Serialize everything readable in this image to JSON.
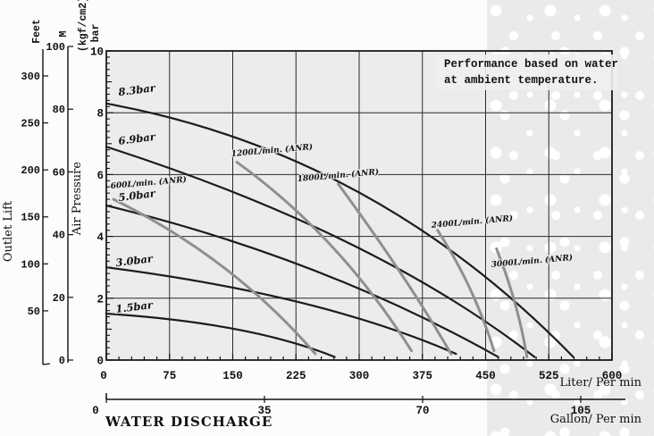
{
  "chart_data": {
    "type": "line",
    "note": {
      "lines": [
        "Performance based on water",
        "at ambient temperature."
      ]
    },
    "x_axis": {
      "label": "Liter/ Per min",
      "min": 0,
      "max": 600,
      "ticks": [
        0,
        75,
        150,
        225,
        300,
        375,
        450,
        525,
        600
      ],
      "minor_step": 15
    },
    "y_axis": {
      "label": "Air Pressure",
      "unit_labels": [
        "(kgf/cm2)",
        "bar"
      ],
      "min": 0,
      "max": 10,
      "ticks": [
        10,
        8,
        6,
        4,
        2,
        0
      ],
      "grid_ticks": [
        2,
        4,
        6,
        8,
        10
      ],
      "minor_step": 0.2
    },
    "secondary_x_axis": {
      "title": "WATER DISCHARGE",
      "label": "Gallon/ Per min",
      "ticks": [
        0,
        35,
        70,
        105
      ]
    },
    "left_scales": [
      {
        "label": "Feet",
        "ticks": [
          300,
          250,
          200,
          150,
          100,
          50
        ]
      },
      {
        "label": "M",
        "ticks": [
          100,
          80,
          60,
          40,
          20,
          0
        ]
      }
    ],
    "outer_y_label": "Outlet Lift",
    "colors": {
      "pressure_curve": "#1c1c1c",
      "air_curve": "#8f8f8f",
      "grid": "#2a2a2a",
      "plot_bg": "#ececec"
    },
    "pressure_curves": [
      {
        "label": "8.3bar",
        "from": [
          0,
          8.3
        ],
        "ctrl": [
          319,
          6.7
        ],
        "to": [
          554,
          0.1
        ],
        "label_at": [
          14.8,
          8.55
        ]
      },
      {
        "label": "6.9bar",
        "from": [
          0,
          6.9
        ],
        "ctrl": [
          319,
          4.1
        ],
        "to": [
          508,
          0.1
        ],
        "label_at": [
          14.8,
          6.97
        ]
      },
      {
        "label": "5.0bar",
        "from": [
          0,
          5.0
        ],
        "ctrl": [
          256,
          3.3
        ],
        "to": [
          465,
          0.1
        ],
        "label_at": [
          14.8,
          5.14
        ]
      },
      {
        "label": "3.0bar",
        "from": [
          0,
          3.0
        ],
        "ctrl": [
          256,
          2.1
        ],
        "to": [
          415,
          0.2
        ],
        "label_at": [
          11.7,
          3.03
        ]
      },
      {
        "label": "1.5bar",
        "from": [
          0,
          1.5
        ],
        "ctrl": [
          171,
          1.2
        ],
        "to": [
          271,
          0.1
        ],
        "label_at": [
          11.7,
          1.53
        ]
      }
    ],
    "air_curves": [
      {
        "label": "600L/min. (ANR)",
        "from": [
          8.5,
          5.2
        ],
        "ctrl": [
          150,
          3.3
        ],
        "to": [
          248,
          0.2
        ],
        "label_at": [
          5.3,
          5.55
        ]
      },
      {
        "label": "1200L/min. (ANR)",
        "from": [
          155,
          6.4
        ],
        "ctrl": [
          277,
          4.0
        ],
        "to": [
          362,
          0.3
        ],
        "label_at": [
          148.4,
          6.59
        ]
      },
      {
        "label": "1800L/min. (ANR)",
        "from": [
          275,
          5.7
        ],
        "ctrl": [
          356,
          2.7
        ],
        "to": [
          409,
          0.2
        ],
        "label_at": [
          226.9,
          5.78
        ]
      },
      {
        "label": "2400L/min. (ANR)",
        "from": [
          393,
          4.2
        ],
        "ctrl": [
          436,
          2.4
        ],
        "to": [
          460,
          0.3
        ],
        "label_at": [
          385.9,
          4.28
        ]
      },
      {
        "label": "3000L/min. (ANR)",
        "from": [
          463,
          3.6
        ],
        "ctrl": [
          489,
          1.8
        ],
        "to": [
          499,
          0.1
        ],
        "label_at": [
          456.9,
          3.01
        ]
      }
    ]
  }
}
